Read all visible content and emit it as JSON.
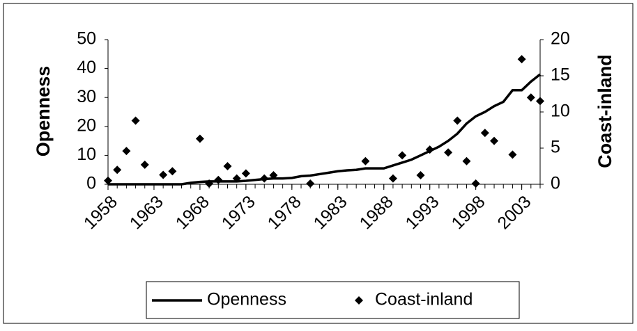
{
  "chart_data": {
    "type": "line-scatter",
    "x": [
      1958,
      1959,
      1960,
      1961,
      1962,
      1963,
      1964,
      1965,
      1966,
      1967,
      1968,
      1969,
      1970,
      1971,
      1972,
      1973,
      1974,
      1975,
      1976,
      1977,
      1978,
      1979,
      1980,
      1981,
      1982,
      1983,
      1984,
      1985,
      1986,
      1987,
      1988,
      1989,
      1990,
      1991,
      1992,
      1993,
      1994,
      1995,
      1996,
      1997,
      1998,
      1999,
      2000,
      2001,
      2002,
      2003,
      2004,
      2005
    ],
    "xlim": [
      1958,
      2005
    ],
    "xticks": [
      1958,
      1963,
      1968,
      1973,
      1978,
      1983,
      1988,
      1993,
      1998,
      2003
    ],
    "ylabel": "Openness",
    "ylim": [
      0,
      50
    ],
    "yticks": [
      0,
      10,
      20,
      30,
      40,
      50
    ],
    "y2label": "Coast-inland",
    "y2lim": [
      0,
      20
    ],
    "y2ticks": [
      0,
      5,
      10,
      15,
      20
    ],
    "legend": "bottom",
    "series": [
      {
        "name": "Openness",
        "color": "#000000",
        "mark": "line",
        "values": [
          0,
          0,
          0,
          0,
          0,
          0,
          0,
          0,
          0,
          0.5,
          0.8,
          1,
          1,
          1,
          1,
          1.2,
          1.5,
          1.8,
          2,
          2,
          2.2,
          2.8,
          3,
          3.5,
          4,
          4.5,
          4.8,
          5,
          5.5,
          5.5,
          5.5,
          6.5,
          7.5,
          8.5,
          10,
          11.5,
          13,
          15,
          17.5,
          21,
          23.5,
          25,
          27,
          28.5,
          32.5,
          32.5,
          35.5,
          38
        ]
      },
      {
        "name": "Coast-inland",
        "color": "#000000",
        "mark": "diamond",
        "axis": "y2",
        "values": [
          0.5,
          2.0,
          4.6,
          8.8,
          2.7,
          null,
          1.3,
          1.8,
          null,
          null,
          6.3,
          0.1,
          0.6,
          2.5,
          0.8,
          1.5,
          null,
          0.8,
          1.25,
          null,
          null,
          null,
          0.1,
          null,
          null,
          null,
          null,
          null,
          3.2,
          null,
          null,
          0.8,
          4.0,
          null,
          1.25,
          4.8,
          null,
          4.4,
          8.8,
          3.2,
          0.1,
          7.1,
          6.0,
          null,
          4.1,
          17.3,
          12.0,
          11.5
        ]
      }
    ]
  }
}
